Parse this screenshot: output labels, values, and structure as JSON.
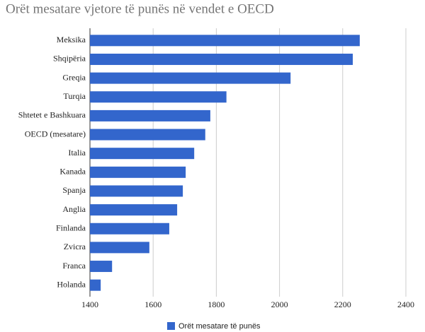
{
  "chart_data": {
    "type": "bar",
    "orientation": "horizontal",
    "title": "Orët mesatare vjetore të punës në vendet e OECD",
    "categories": [
      "Meksika",
      "Shqipëria",
      "Greqia",
      "Turqia",
      "Shtetet e Bashkuara",
      "OECD (mesatare)",
      "Italia",
      "Kanada",
      "Spanja",
      "Anglia",
      "Finlanda",
      "Zvicra",
      "Franca",
      "Holanda"
    ],
    "series": [
      {
        "name": "Orët mesatare të punës",
        "color": "#3366cc",
        "values": [
          2254,
          2232,
          2035,
          1832,
          1781,
          1765,
          1730,
          1703,
          1694,
          1676,
          1651,
          1588,
          1470,
          1434
        ]
      }
    ],
    "xlim": [
      1400,
      2400
    ],
    "xticks": [
      1400,
      1600,
      1800,
      2000,
      2200,
      2400
    ],
    "grid": true,
    "legend": "bottom"
  }
}
